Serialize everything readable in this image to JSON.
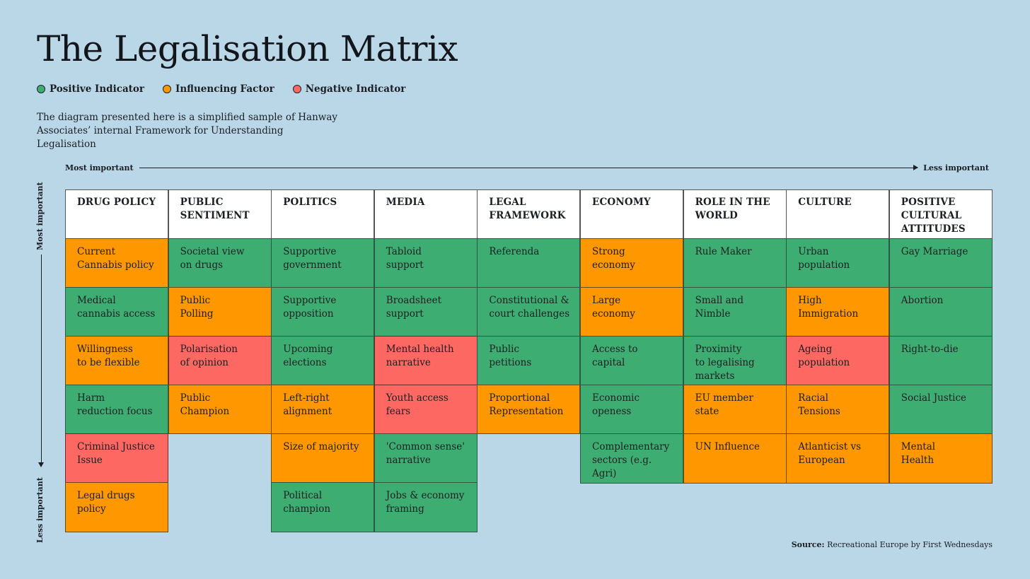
{
  "title": "The Legalisation Matrix",
  "legend": [
    {
      "label": "Positive Indicator",
      "color": "#3ead71"
    },
    {
      "label": "Influencing Factor",
      "color": "#fe9700"
    },
    {
      "label": "Negative Indicator",
      "color": "#fd6862"
    }
  ],
  "description": "The diagram presented here is a simplified sample of Hanway Associates’ internal Framework for Understanding Legalisation",
  "horizontal_axis": {
    "start": "Most important",
    "end": "Less important"
  },
  "vertical_axis": {
    "start": "Most important",
    "end": "Less important"
  },
  "columns": [
    {
      "header": "DRUG POLICY",
      "cells": [
        {
          "text": "Current\nCannabis policy",
          "type": "inf"
        },
        {
          "text": "Medical\ncannabis access",
          "type": "pos"
        },
        {
          "text": "Willingness\nto be flexible",
          "type": "inf"
        },
        {
          "text": "Harm\nreduction focus",
          "type": "pos"
        },
        {
          "text": "Criminal Justice\nIssue",
          "type": "neg"
        },
        {
          "text": "Legal drugs\npolicy",
          "type": "inf"
        }
      ]
    },
    {
      "header": "PUBLIC\nSENTIMENT",
      "cells": [
        {
          "text": "Societal view\non drugs",
          "type": "pos"
        },
        {
          "text": "Public\nPolling",
          "type": "inf"
        },
        {
          "text": "Polarisation\nof opinion",
          "type": "neg"
        },
        {
          "text": "Public\nChampion",
          "type": "inf"
        }
      ]
    },
    {
      "header": "POLITICS",
      "cells": [
        {
          "text": "Supportive\ngovernment",
          "type": "pos"
        },
        {
          "text": "Supportive\nopposition",
          "type": "pos"
        },
        {
          "text": "Upcoming\nelections",
          "type": "pos"
        },
        {
          "text": "Left-right\nalignment",
          "type": "inf"
        },
        {
          "text": "Size of majority",
          "type": "inf"
        },
        {
          "text": "Political\nchampion",
          "type": "pos"
        }
      ]
    },
    {
      "header": "MEDIA",
      "cells": [
        {
          "text": "Tabloid\nsupport",
          "type": "pos"
        },
        {
          "text": "Broadsheet\nsupport",
          "type": "pos"
        },
        {
          "text": "Mental health\nnarrative",
          "type": "neg"
        },
        {
          "text": "Youth access\nfears",
          "type": "neg"
        },
        {
          "text": "'Common sense'\nnarrative",
          "type": "pos"
        },
        {
          "text": "Jobs & economy\nframing",
          "type": "pos"
        }
      ]
    },
    {
      "header": "LEGAL\nFRAMEWORK",
      "cells": [
        {
          "text": "Referenda",
          "type": "pos"
        },
        {
          "text": "Constitutional &\ncourt challenges",
          "type": "pos"
        },
        {
          "text": "Public\npetitions",
          "type": "pos"
        },
        {
          "text": "Proportional\nRepresentation",
          "type": "inf"
        }
      ]
    },
    {
      "header": "ECONOMY",
      "cells": [
        {
          "text": "Strong\neconomy",
          "type": "inf"
        },
        {
          "text": "Large\neconomy",
          "type": "inf"
        },
        {
          "text": "Access to\ncapital",
          "type": "pos"
        },
        {
          "text": "Economic\nopeness",
          "type": "pos"
        },
        {
          "text": "Complementary\nsectors (e.g. Agri)",
          "type": "pos"
        }
      ]
    },
    {
      "header": "ROLE IN THE\nWORLD",
      "cells": [
        {
          "text": "Rule Maker",
          "type": "pos"
        },
        {
          "text": "Small and\nNimble",
          "type": "pos"
        },
        {
          "text": "Proximity\nto legalising\nmarkets",
          "type": "pos"
        },
        {
          "text": "EU member\nstate",
          "type": "inf"
        },
        {
          "text": "UN Influence",
          "type": "inf"
        }
      ]
    },
    {
      "header": "CULTURE",
      "cells": [
        {
          "text": "Urban\npopulation",
          "type": "pos"
        },
        {
          "text": "High\nImmigration",
          "type": "inf"
        },
        {
          "text": "Ageing\npopulation",
          "type": "neg"
        },
        {
          "text": "Racial\nTensions",
          "type": "inf"
        },
        {
          "text": "Atlanticist vs\nEuropean",
          "type": "inf"
        }
      ]
    },
    {
      "header": "POSITIVE\nCULTURAL\nATTITUDES",
      "cells": [
        {
          "text": "Gay Marriage",
          "type": "pos"
        },
        {
          "text": "Abortion",
          "type": "pos"
        },
        {
          "text": "Right-to-die",
          "type": "pos"
        },
        {
          "text": "Social Justice",
          "type": "pos"
        },
        {
          "text": "Mental\nHealth",
          "type": "inf"
        }
      ]
    }
  ],
  "source": {
    "label": "Source:",
    "text": "Recreational Europe by First Wednesdays"
  }
}
